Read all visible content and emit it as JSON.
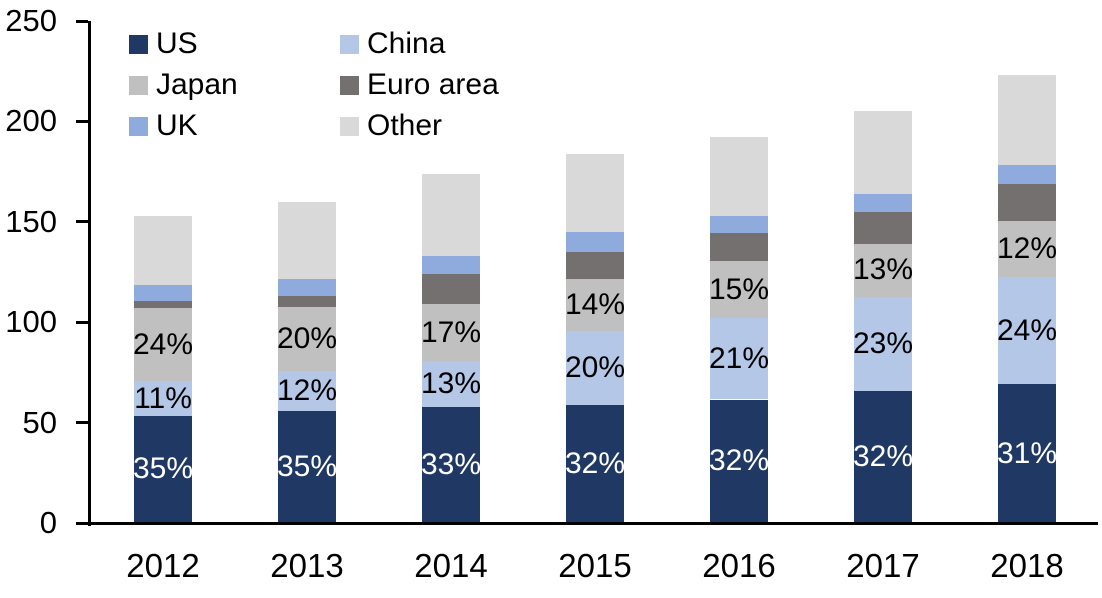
{
  "background_color": "#ffffff",
  "axis": {
    "y_tick_labels": [
      "0",
      "50",
      "100",
      "150",
      "200",
      "250"
    ],
    "y_tick_values": [
      0,
      50,
      100,
      150,
      200,
      250
    ],
    "line_color": "#000000"
  },
  "legend": {
    "position": "top-left-inside",
    "items": [
      {
        "label": "US",
        "color": "#1f3864"
      },
      {
        "label": "China",
        "color": "#b4c7e7"
      },
      {
        "label": "Japan",
        "color": "#c0c0c0"
      },
      {
        "label": "Euro area",
        "color": "#747070"
      },
      {
        "label": "UK",
        "color": "#8faadc"
      },
      {
        "label": "Other",
        "color": "#d9d9d9"
      }
    ]
  },
  "chart_data": {
    "type": "bar",
    "stacked": true,
    "title": "",
    "xlabel": "",
    "ylabel": "",
    "grid": false,
    "ylim": [
      0,
      250
    ],
    "yticks": [
      0,
      50,
      100,
      150,
      200,
      250
    ],
    "categories": [
      "2012",
      "2013",
      "2014",
      "2015",
      "2016",
      "2017",
      "2018"
    ],
    "legend_position": "upper left inside",
    "series": [
      {
        "name": "US",
        "color": "#1f3864",
        "values": [
          53.5,
          56,
          58,
          59,
          61.5,
          65.5,
          69
        ],
        "labels": [
          "35%",
          "35%",
          "33%",
          "32%",
          "32%",
          "32%",
          "31%"
        ],
        "label_color": "#ffffff"
      },
      {
        "name": "China",
        "color": "#b4c7e7",
        "values": [
          17,
          19.5,
          22.5,
          36.5,
          40.5,
          47,
          53.5
        ],
        "labels": [
          "11%",
          "12%",
          "13%",
          "20%",
          "21%",
          "23%",
          "24%"
        ],
        "label_color": "#000000"
      },
      {
        "name": "Japan",
        "color": "#c0c0c0",
        "values": [
          36.5,
          32,
          28.5,
          26,
          28.5,
          26.5,
          28
        ],
        "labels": [
          "24%",
          "20%",
          "17%",
          "14%",
          "15%",
          "13%",
          "12%"
        ],
        "label_color": "#000000"
      },
      {
        "name": "Euro area",
        "color": "#747070",
        "values": [
          3.5,
          5.5,
          15,
          13.5,
          14,
          16,
          18.5
        ],
        "labels": null,
        "label_color": null
      },
      {
        "name": "UK",
        "color": "#8faadc",
        "values": [
          8,
          8.5,
          9,
          10,
          8.5,
          9,
          9.5
        ],
        "labels": null,
        "label_color": null
      },
      {
        "name": "Other",
        "color": "#d9d9d9",
        "values": [
          34.5,
          38.5,
          41,
          39,
          39,
          41,
          44.5
        ],
        "labels": null,
        "label_color": null
      }
    ],
    "totals": [
      153,
      160,
      174,
      184,
      192,
      205,
      223
    ]
  }
}
